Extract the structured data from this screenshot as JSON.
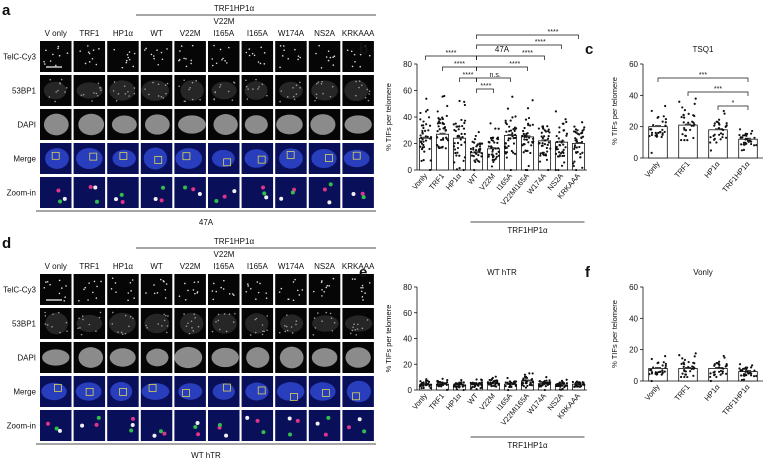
{
  "panels": {
    "a": {
      "letter": "a",
      "group_title": "TRF1HP1α",
      "sub_group_title": "V22M",
      "columns": [
        "V only",
        "TRF1",
        "HP1α",
        "WT",
        "V22M",
        "I165A",
        "I165A",
        "W174A",
        "NS2A",
        "KRKAAA"
      ],
      "rows": [
        "TelC-Cy3",
        "53BP1",
        "DAPI",
        "Merge",
        "Zoom-in"
      ],
      "caption": "47A"
    },
    "d": {
      "letter": "d",
      "group_title": "TRF1HP1α",
      "sub_group_title": "V22M",
      "columns": [
        "V only",
        "TRF1",
        "HP1α",
        "WT",
        "V22M",
        "I165A",
        "I165A",
        "W174A",
        "NS2A",
        "KRKAAA"
      ],
      "rows": [
        "TelC-Cy3",
        "53BP1",
        "DAPI",
        "Merge",
        "Zoom-in"
      ],
      "caption": "WT hTR"
    },
    "b": {
      "letter": "b"
    },
    "c": {
      "letter": "c"
    },
    "e": {
      "letter": "e"
    },
    "f": {
      "letter": "f"
    }
  },
  "chart_data": [
    {
      "id": "b",
      "type": "bar",
      "title": "47A",
      "ylabel": "% TIFs per telomere",
      "ylim": [
        0,
        80
      ],
      "yticks": [
        0,
        20,
        40,
        60,
        80
      ],
      "categories": [
        "Vonly",
        "TRF1",
        "HP1α",
        "WT",
        "V22M",
        "I165A",
        "V22MI165A",
        "W174A",
        "NS2A",
        "KRKAAA"
      ],
      "values": [
        24,
        27,
        24,
        13,
        16,
        26,
        25,
        22,
        21,
        20
      ],
      "group_label": "TRF1HP1α",
      "significance": [
        "****",
        "****",
        "****",
        "****",
        "n.s.",
        "****",
        "****",
        "****",
        "****",
        "****"
      ]
    },
    {
      "id": "c",
      "type": "bar",
      "title": "TSQ1",
      "ylabel": "% TIFs per telomere",
      "ylim": [
        0,
        60
      ],
      "yticks": [
        0,
        20,
        40,
        60
      ],
      "categories": [
        "Vonly",
        "TRF1",
        "HP1α",
        "TRF1HP1α"
      ],
      "values": [
        20,
        21,
        18,
        12
      ],
      "significance": [
        "***",
        "***",
        "*"
      ]
    },
    {
      "id": "e",
      "type": "bar",
      "title": "WT hTR",
      "ylabel": "% TIFs per telomere",
      "ylim": [
        0,
        80
      ],
      "yticks": [
        0,
        20,
        40,
        60,
        80
      ],
      "categories": [
        "Vonly",
        "TRF1",
        "HP1α",
        "WT",
        "V22M",
        "I165A",
        "V22MI165A",
        "W174A",
        "NS2A",
        "KRKAAA"
      ],
      "values": [
        4,
        4.5,
        4,
        4,
        5,
        4.5,
        7,
        5,
        4,
        4.5
      ],
      "group_label": "TRF1HP1α"
    },
    {
      "id": "f",
      "type": "bar",
      "title": "Vonly",
      "ylabel": "% TIFs per telomere",
      "ylim": [
        0,
        60
      ],
      "yticks": [
        0,
        20,
        40,
        60
      ],
      "categories": [
        "Vonly",
        "TRF1",
        "HP1α",
        "TRF1HP1α"
      ],
      "values": [
        8,
        8,
        8,
        6
      ]
    }
  ]
}
